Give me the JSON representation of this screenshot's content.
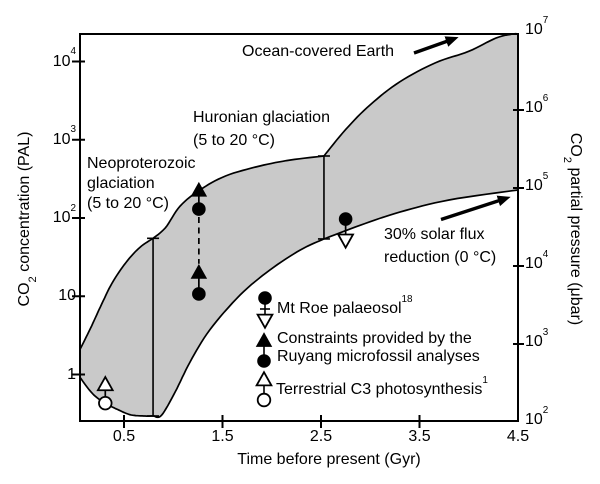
{
  "figure": {
    "background": "#ffffff",
    "band_color": "#c9c9c9",
    "line_color": "#000000"
  },
  "chart_data": {
    "type": "area",
    "title": "",
    "xlabel": "Time before present (Gyr)",
    "grid": false,
    "legend_position": "inside-lower-right",
    "axes": {
      "x": {
        "ticks": [
          {
            "label": "0.5",
            "t": 0.5,
            "tick": true
          },
          {
            "label": "1.5",
            "t": 1.5,
            "tick": true
          },
          {
            "label": "2.5",
            "t": 2.5,
            "tick": true
          },
          {
            "label": "3.5",
            "t": 3.5,
            "tick": true
          },
          {
            "label": "4.5",
            "t": 4.5,
            "tick": false
          }
        ],
        "range": [
          0.05,
          4.5
        ]
      },
      "y_left": {
        "label_pre": "CO",
        "label_sub": "2",
        "label_post": " concentration (PAL)",
        "scale": "log",
        "range": [
          0.25,
          22500
        ],
        "ticks": [
          {
            "base": "1",
            "exp": "",
            "v": 1,
            "tick": true
          },
          {
            "base": "10",
            "exp": "",
            "v": 10,
            "tick": true
          },
          {
            "base": "10",
            "exp": "2",
            "v": 100,
            "tick": true
          },
          {
            "base": "10",
            "exp": "3",
            "v": 1000,
            "tick": true
          },
          {
            "base": "10",
            "exp": "4",
            "v": 10000,
            "tick": true
          }
        ]
      },
      "y_right": {
        "label_pre": "CO",
        "label_sub": "2",
        "label_post": " partial pressure (μbar)",
        "scale": "log",
        "range": [
          100,
          10000000
        ],
        "ticks": [
          {
            "base": "10",
            "exp": "2",
            "v": 100,
            "tick": false
          },
          {
            "base": "10",
            "exp": "3",
            "v": 1000,
            "tick": true
          },
          {
            "base": "10",
            "exp": "4",
            "v": 10000,
            "tick": true
          },
          {
            "base": "10",
            "exp": "5",
            "v": 100000,
            "tick": true
          },
          {
            "base": "10",
            "exp": "6",
            "v": 1000000,
            "tick": true
          },
          {
            "base": "10",
            "exp": "7",
            "v": 10000000,
            "tick": false
          }
        ]
      }
    },
    "band": {
      "description": "Shaded region of permitted atmospheric CO2 (PAL, left axis) vs time before present (Gyr)",
      "upper_segments": [
        [
          [
            0.05,
            2.05
          ],
          [
            0.16,
            3.9
          ],
          [
            0.26,
            7.3
          ],
          [
            0.38,
            14.8
          ],
          [
            0.52,
            27
          ],
          [
            0.66,
            42
          ],
          [
            0.795,
            55
          ]
        ],
        [
          [
            0.795,
            55
          ],
          [
            0.92,
            75
          ],
          [
            1.07,
            142
          ],
          [
            1.27,
            228
          ],
          [
            1.53,
            344
          ],
          [
            1.88,
            462
          ],
          [
            2.19,
            551
          ],
          [
            2.53,
            620
          ]
        ],
        [
          [
            2.53,
            620
          ],
          [
            2.75,
            1350
          ],
          [
            3.0,
            2800
          ],
          [
            3.3,
            5500
          ],
          [
            3.66,
            9600
          ],
          [
            4.0,
            13500
          ],
          [
            4.28,
            20000
          ],
          [
            4.45,
            22800
          ],
          [
            4.5,
            23000
          ]
        ]
      ],
      "lower_segments": [
        [
          [
            0.05,
            0.93
          ],
          [
            0.18,
            0.57
          ],
          [
            0.31,
            0.43
          ],
          [
            0.45,
            0.35
          ],
          [
            0.57,
            0.305
          ],
          [
            0.7,
            0.295
          ],
          [
            0.8,
            0.295
          ]
        ],
        [
          [
            0.8,
            0.295
          ],
          [
            0.88,
            0.3
          ],
          [
            1.02,
            0.6
          ],
          [
            1.17,
            1.44
          ],
          [
            1.37,
            3.7
          ],
          [
            1.68,
            10.4
          ],
          [
            1.98,
            21.6
          ],
          [
            2.29,
            39
          ],
          [
            2.53,
            54
          ]
        ],
        [
          [
            2.53,
            54
          ],
          [
            2.9,
            81
          ],
          [
            3.3,
            119
          ],
          [
            3.8,
            170
          ],
          [
            4.5,
            228
          ]
        ]
      ]
    },
    "constraint_lines": [
      {
        "id": "neoproterozoic-glaciation-line",
        "t": 0.795,
        "v_min": 0.295,
        "v_max": 55
      },
      {
        "id": "huronian-glaciation-line",
        "t": 2.53,
        "v_min": 54,
        "v_max": 620
      }
    ],
    "points": [
      {
        "id": "terrestrial-c3",
        "t": 0.31,
        "markers": [
          {
            "shape": "triangle-up",
            "fill": "open",
            "v": 0.76
          },
          {
            "shape": "circle",
            "fill": "open",
            "v": 0.43
          }
        ]
      },
      {
        "id": "ruyang-lower",
        "t": 1.26,
        "markers": [
          {
            "shape": "triangle-up",
            "fill": "solid",
            "v": 20.5
          },
          {
            "shape": "circle",
            "fill": "solid",
            "v": 10.7
          }
        ]
      },
      {
        "id": "ruyang-upper",
        "t": 1.26,
        "markers": [
          {
            "shape": "triangle-up",
            "fill": "solid",
            "v": 230
          },
          {
            "shape": "circle",
            "fill": "solid",
            "v": 130
          }
        ]
      },
      {
        "id": "mt-roe",
        "t": 2.75,
        "markers": [
          {
            "shape": "circle",
            "fill": "solid",
            "v": 97
          },
          {
            "shape": "triangle-down",
            "fill": "open",
            "v": 51
          }
        ]
      }
    ],
    "dashed_connector": {
      "t": 1.26,
      "v_from": 26,
      "v_to": 103
    },
    "annotations": {
      "ocean": {
        "text": "Ocean-covered Earth"
      },
      "huronian": {
        "line1": "Huronian glaciation",
        "line2": "(5 to 20 °C)"
      },
      "neoproterozoic": {
        "line1": "Neoproterozoic",
        "line2": "glaciation",
        "line3": "(5 to 20 °C)"
      },
      "solar_flux": {
        "line1": "30% solar flux",
        "line2": "reduction (0 °C)"
      }
    },
    "legend": {
      "items": [
        {
          "id": "mt-roe-palaeosol",
          "text": "Mt Roe palaeosol",
          "sup": "18"
        },
        {
          "id": "ruyang-constraints",
          "line1": "Constraints provided by the",
          "line2": "Ruyang microfossil analyses"
        },
        {
          "id": "terrestrial-c3-photosynthesis",
          "text": "Terrestrial C3 photosynthesis",
          "sup": "1"
        }
      ]
    }
  }
}
